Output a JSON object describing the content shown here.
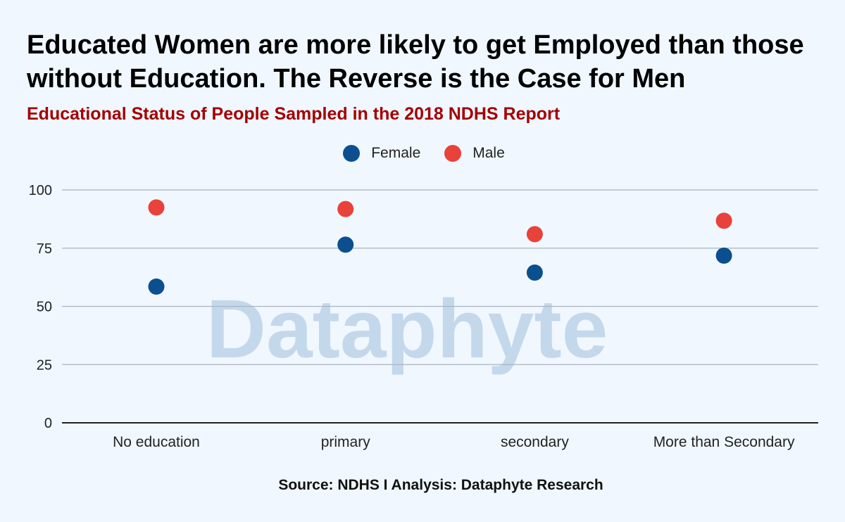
{
  "header": {
    "title": "Educated Women are more likely to get Employed than those without Education. The Reverse is the Case for Men",
    "subtitle": "Educational Status of People Sampled in the 2018 NDHS Report"
  },
  "watermark": {
    "text": "Dataphyte"
  },
  "footer": {
    "source": "Source: NDHS I Analysis: Dataphyte Research"
  },
  "colors": {
    "background": "#f0f7fe",
    "subtitle": "#a30000",
    "female": "#0b4f8f",
    "male": "#e8423a",
    "gridline": "#aab4c0",
    "axis": "#222222",
    "watermark": "#c4d8ec"
  },
  "chart_data": {
    "type": "scatter",
    "categories": [
      "No education",
      "primary",
      "secondary",
      "More than Secondary"
    ],
    "series": [
      {
        "name": "Female",
        "values": [
          58.5,
          76.5,
          64.5,
          71.8
        ],
        "color": "#0b4f8f"
      },
      {
        "name": "Male",
        "values": [
          92.5,
          91.8,
          81,
          86.8
        ],
        "color": "#e8423a"
      }
    ],
    "yticks": [
      0,
      25,
      50,
      75,
      100
    ],
    "ylim": [
      0,
      100
    ],
    "grid": true,
    "legend_position": "top-center"
  }
}
